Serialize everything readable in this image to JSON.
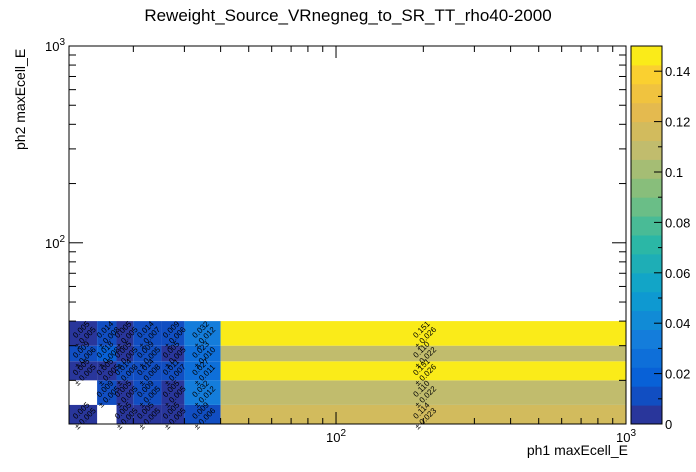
{
  "chart_data": {
    "type": "heatmap",
    "title": "Reweight_Source_VRnegneg_to_SR_TT_rho40-2000",
    "xlabel": "ph1 maxEcell_E",
    "ylabel": "ph2 maxEcell_E",
    "x_scale": "log",
    "y_scale": "log",
    "xlim": [
      12,
      1000
    ],
    "ylim": [
      12,
      1000
    ],
    "x_tick_labels": [
      "10^2",
      "10^3"
    ],
    "y_tick_labels": [
      "10^2",
      "10^3"
    ],
    "colorbar": {
      "min": 0,
      "max": 0.15,
      "tick_labels": [
        "0",
        "0.02",
        "0.04",
        "0.06",
        "0.08",
        "0.1",
        "0.12",
        "0.14"
      ]
    },
    "x_bins": [
      12,
      15,
      17.5,
      20,
      25,
      30,
      40,
      1000
    ],
    "y_bins": [
      12,
      15,
      20,
      25,
      30,
      40,
      1000
    ],
    "cells": [
      {
        "xi": 0,
        "yi": 0,
        "v": 0.005,
        "label": "0.005",
        "err": "± 0.005"
      },
      {
        "xi": 2,
        "yi": 0,
        "v": 0.005,
        "label": "0.005",
        "err": "± 0.005"
      },
      {
        "xi": 3,
        "yi": 0,
        "v": 0.005,
        "label": "0.005",
        "err": "± 0.005"
      },
      {
        "xi": 4,
        "yi": 0,
        "v": 0.005,
        "label": "0.005",
        "err": "± 0.005"
      },
      {
        "xi": 5,
        "yi": 0,
        "v": 0.009,
        "label": "0.009",
        "err": "± 0.006"
      },
      {
        "xi": 6,
        "yi": 0,
        "v": 0.114,
        "label": "0.114",
        "err": "± 0.023"
      },
      {
        "xi": 1,
        "yi": 1,
        "v": 0.009,
        "label": "0.009",
        "err": "± 0.005"
      },
      {
        "xi": 2,
        "yi": 1,
        "v": 0.005,
        "label": "0.005",
        "err": "± 0.005"
      },
      {
        "xi": 3,
        "yi": 1,
        "v": 0.009,
        "label": "0.009",
        "err": "± 0.005"
      },
      {
        "xi": 4,
        "yi": 1,
        "v": 0.005,
        "label": "0.005",
        "err": "± 0.005"
      },
      {
        "xi": 5,
        "yi": 1,
        "v": 0.032,
        "label": "0.032",
        "err": "± 0.012"
      },
      {
        "xi": 6,
        "yi": 1,
        "v": 0.11,
        "label": "0.110",
        "err": "± 0.022"
      },
      {
        "xi": 0,
        "yi": 2,
        "v": 0.005,
        "label": "0.005",
        "err": "± 0.005"
      },
      {
        "xi": 1,
        "yi": 2,
        "v": 0.005,
        "label": "0.005",
        "err": "± 0.005"
      },
      {
        "xi": 2,
        "yi": 2,
        "v": 0.014,
        "label": "0.014",
        "err": "± 0.008"
      },
      {
        "xi": 3,
        "yi": 2,
        "v": 0.014,
        "label": "0.014",
        "err": "± 0.008"
      },
      {
        "xi": 4,
        "yi": 2,
        "v": 0.011,
        "label": "0.011",
        "err": "± 0.007"
      },
      {
        "xi": 5,
        "yi": 2,
        "v": 0.027,
        "label": "0.027",
        "err": "± 0.011"
      },
      {
        "xi": 6,
        "yi": 2,
        "v": 0.151,
        "label": "0.151",
        "err": "± 0.026"
      },
      {
        "xi": 0,
        "yi": 3,
        "v": 0.009,
        "label": "0.009",
        "err": "± 0.006"
      },
      {
        "xi": 1,
        "yi": 3,
        "v": 0.018,
        "label": "0.018",
        "err": "± 0.008"
      },
      {
        "xi": 2,
        "yi": 3,
        "v": 0.005,
        "label": "0.005",
        "err": "± 0.005"
      },
      {
        "xi": 3,
        "yi": 3,
        "v": 0.009,
        "label": "0.009",
        "err": "± 0.005"
      },
      {
        "xi": 4,
        "yi": 3,
        "v": 0.005,
        "label": "0.005",
        "err": "± 0.005"
      },
      {
        "xi": 5,
        "yi": 3,
        "v": 0.023,
        "label": "0.023",
        "err": "± 0.010"
      },
      {
        "xi": 6,
        "yi": 3,
        "v": 0.11,
        "label": "0.110",
        "err": "± 0.022"
      },
      {
        "xi": 0,
        "yi": 4,
        "v": 0.005,
        "label": "0.005",
        "err": "± 0.005"
      },
      {
        "xi": 1,
        "yi": 4,
        "v": 0.014,
        "label": "0.014",
        "err": "± 0.008"
      },
      {
        "xi": 2,
        "yi": 4,
        "v": 0.005,
        "label": "0.005",
        "err": "± 0.005"
      },
      {
        "xi": 3,
        "yi": 4,
        "v": 0.014,
        "label": "0.014",
        "err": "± 0.007"
      },
      {
        "xi": 4,
        "yi": 4,
        "v": 0.009,
        "label": "0.009",
        "err": "± 0.006"
      },
      {
        "xi": 5,
        "yi": 4,
        "v": 0.032,
        "label": "0.032",
        "err": "± 0.012"
      },
      {
        "xi": 6,
        "yi": 4,
        "v": 0.151,
        "label": "0.151",
        "err": "± 0.026"
      }
    ]
  }
}
